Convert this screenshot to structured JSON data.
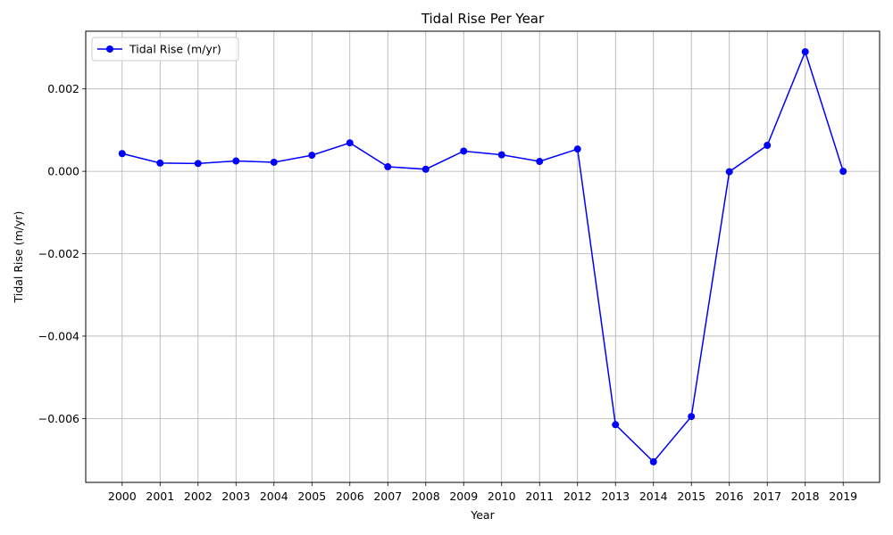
{
  "chart_data": {
    "type": "line",
    "title": "Tidal Rise Per Year",
    "xlabel": "Year",
    "ylabel": "Tidal Rise (m/yr)",
    "categories": [
      "2000",
      "2001",
      "2002",
      "2003",
      "2004",
      "2005",
      "2006",
      "2007",
      "2008",
      "2009",
      "2010",
      "2011",
      "2012",
      "2013",
      "2014",
      "2015",
      "2016",
      "2017",
      "2018",
      "2019"
    ],
    "series": [
      {
        "name": "Tidal Rise (m/yr)",
        "color": "#0000ff",
        "values": [
          0.00043,
          0.0002,
          0.00019,
          0.00025,
          0.00022,
          0.00039,
          0.00069,
          0.00011,
          5e-05,
          0.00049,
          0.0004,
          0.00024,
          0.00054,
          -0.00615,
          -0.00705,
          -0.00595,
          -1e-05,
          0.00063,
          0.0029,
          0.0
        ]
      }
    ],
    "yticks": [
      -0.006,
      -0.004,
      -0.002,
      0.0,
      0.002
    ],
    "ytick_labels": [
      "−0.006",
      "−0.004",
      "−0.002",
      "0.000",
      "0.002"
    ],
    "ylim": [
      -0.00755,
      0.0034
    ],
    "grid": true,
    "legend_position": "top-left"
  }
}
